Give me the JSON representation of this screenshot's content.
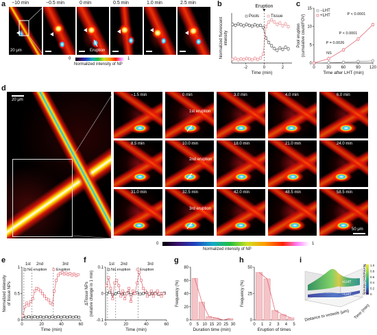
{
  "panel_labels": {
    "a": "a",
    "b": "b",
    "c": "c",
    "d": "d",
    "e": "e",
    "f": "f",
    "g": "g",
    "h": "h",
    "i": "i"
  },
  "panel_a": {
    "times": [
      "−10 min",
      "−0.5 min",
      "0 min",
      "0.5 min",
      "1.0 min",
      "2.5 min"
    ],
    "scale": "20 μm",
    "eruption_label": "Eruption",
    "colorbar_label": "Normalized intensity of NP",
    "colorbar_min": "0",
    "colorbar_max": "1"
  },
  "panel_d": {
    "scale": "20 μm",
    "scale2": "50 μm",
    "times": [
      "−1.5 min",
      "0 min",
      "3.0 min",
      "4.0 min",
      "6.0 min",
      "8.5 min",
      "10.0 min",
      "18.0 min",
      "21.0 min",
      "24.0 min",
      "31.0 min",
      "32.5 min",
      "42.0 min",
      "48.5 min",
      "58.5 min"
    ],
    "eruptions": [
      "1st eruption",
      "2nd eruption",
      "3rd eruption"
    ],
    "colorbar_label": "Normalized intensity of NP",
    "colorbar_min": "0",
    "colorbar_max": "1"
  },
  "chart_data": [
    {
      "id": "b",
      "type": "line",
      "title": "Eruption",
      "xlabel": "Time (min)",
      "ylabel": "Normalized fluorescent intensity",
      "xlim": [
        -3.5,
        3
      ],
      "ylim": [
        0,
        1.1
      ],
      "xticks": [
        -2,
        0,
        2
      ],
      "legend": [
        "Pools",
        "Tissue"
      ],
      "legend_position": "top",
      "series": [
        {
          "name": "Pools",
          "color": "#555555",
          "x": [
            -3.4,
            -3.1,
            -2.8,
            -2.5,
            -2.2,
            -1.9,
            -1.6,
            -1.3,
            -1.0,
            -0.7,
            -0.4,
            -0.1,
            0.2,
            0.5,
            0.8,
            1.1,
            1.4,
            1.7,
            2.0,
            2.3,
            2.6
          ],
          "y": [
            0.85,
            0.83,
            0.86,
            0.84,
            0.82,
            0.85,
            0.83,
            0.81,
            0.84,
            0.82,
            0.83,
            0.78,
            0.55,
            0.45,
            0.38,
            0.32,
            0.28,
            0.33,
            0.3,
            0.35,
            0.31
          ]
        },
        {
          "name": "Tissue",
          "color": "#e8868c",
          "x": [
            -3.4,
            -3.1,
            -2.8,
            -2.5,
            -2.2,
            -1.9,
            -1.6,
            -1.3,
            -1.0,
            -0.7,
            -0.4,
            -0.1,
            0.2,
            0.5,
            0.8,
            1.1,
            1.4,
            1.7,
            2.0,
            2.3,
            2.6
          ],
          "y": [
            0.08,
            0.1,
            0.07,
            0.09,
            0.08,
            0.1,
            0.09,
            0.07,
            0.1,
            0.08,
            0.11,
            0.2,
            0.8,
            0.9,
            0.95,
            0.9,
            0.85,
            0.88,
            0.82,
            0.86,
            0.8
          ]
        }
      ]
    },
    {
      "id": "c",
      "type": "line",
      "xlabel": "Time after LHT (min)",
      "ylabel": "Pool eruption (cumulative count/FOV)",
      "xlim": [
        0,
        120
      ],
      "ylim": [
        0,
        15
      ],
      "xticks": [
        0,
        30,
        60,
        90,
        120
      ],
      "yticks": [
        0,
        5,
        10,
        15
      ],
      "legend": [
        "−LHT",
        "+LHT"
      ],
      "legend_position": "top-left",
      "annotations": [
        "P < 0.0001",
        "P < 0.0001",
        "P = 0.0026",
        "NS"
      ],
      "series": [
        {
          "name": "−LHT",
          "color": "#888888",
          "x": [
            0,
            30,
            60,
            90,
            120
          ],
          "y": [
            0,
            0.1,
            0.2,
            0.4,
            0.6
          ]
        },
        {
          "name": "+LHT",
          "color": "#e05a66",
          "x": [
            0,
            30,
            60,
            90,
            120
          ],
          "y": [
            0,
            1.2,
            3.6,
            6.6,
            10.5
          ]
        }
      ]
    },
    {
      "id": "e",
      "type": "line",
      "xlabel": "Time (min)",
      "ylabel": "Normalized intensity of tissue NPs",
      "xlim": [
        0,
        60
      ],
      "ylim": [
        0,
        1.0
      ],
      "xticks": [
        0,
        20,
        40,
        60
      ],
      "yticks": [
        0,
        0.5,
        1.0
      ],
      "legend": [
        "No eruption",
        "Eruption"
      ],
      "phase_labels": [
        "1st",
        "2nd",
        "3rd"
      ],
      "series": [
        {
          "name": "No eruption",
          "color": "#333333",
          "x": [
            1,
            4,
            7,
            10,
            13,
            16,
            19,
            22,
            25,
            28,
            31,
            34,
            37,
            40,
            43,
            46,
            49,
            52,
            55,
            58
          ],
          "y": [
            0.06,
            0.05,
            0.06,
            0.05,
            0.06,
            0.05,
            0.06,
            0.05,
            0.06,
            0.05,
            0.06,
            0.05,
            0.06,
            0.05,
            0.06,
            0.05,
            0.06,
            0.05,
            0.06,
            0.05
          ]
        },
        {
          "name": "Eruption",
          "color": "#e05a66",
          "x": [
            1,
            3,
            5,
            7,
            9,
            11,
            13,
            15,
            17,
            19,
            21,
            23,
            25,
            27,
            29,
            31,
            33,
            35,
            37,
            39,
            41,
            43,
            45,
            47,
            49,
            51,
            53,
            55,
            57
          ],
          "y": [
            0.08,
            0.25,
            0.32,
            0.28,
            0.35,
            0.4,
            0.55,
            0.6,
            0.58,
            0.55,
            0.5,
            0.45,
            0.4,
            0.38,
            0.32,
            0.3,
            0.55,
            0.75,
            0.85,
            0.88,
            0.9,
            0.87,
            0.89,
            0.86,
            0.88,
            0.85,
            0.87,
            0.84,
            0.86
          ]
        }
      ]
    },
    {
      "id": "f",
      "type": "line",
      "xlabel": "Time (min)",
      "ylabel": "ΔTissue NPs (relative change in 1 min)",
      "xlim": [
        0,
        60
      ],
      "ylim": [
        -0.1,
        0.1
      ],
      "xticks": [
        0,
        20,
        40,
        60
      ],
      "yticks": [
        -0.1,
        0,
        0.1
      ],
      "legend": [
        "No eruption",
        "Eruption"
      ],
      "phase_labels": [
        "1st",
        "2nd",
        "3rd"
      ],
      "series": [
        {
          "name": "No eruption",
          "color": "#333333",
          "x": [
            1,
            4,
            7,
            10,
            13,
            16,
            19,
            22,
            25,
            28,
            31,
            34,
            37,
            40,
            43,
            46,
            49,
            52,
            55,
            58
          ],
          "y": [
            0.0,
            0.005,
            -0.005,
            0.0,
            0.004,
            -0.003,
            0.0,
            0.003,
            -0.004,
            0.0,
            0.003,
            -0.002,
            0.0,
            0.004,
            -0.003,
            0.0,
            0.002,
            -0.003,
            0.0,
            0.002
          ]
        },
        {
          "name": "Eruption",
          "color": "#e05a66",
          "x": [
            1,
            3,
            5,
            7,
            9,
            11,
            13,
            15,
            17,
            19,
            21,
            23,
            25,
            27,
            29,
            31,
            33,
            35,
            37,
            39,
            41,
            43,
            45,
            47,
            49,
            51,
            53,
            55,
            57
          ],
          "y": [
            0.03,
            0.06,
            0.02,
            -0.02,
            0.04,
            0.05,
            0.03,
            -0.01,
            0.01,
            -0.02,
            0.0,
            0.02,
            -0.03,
            0.01,
            0.0,
            0.04,
            0.08,
            0.05,
            0.02,
            0.01,
            -0.01,
            0.0,
            0.01,
            -0.01,
            0.0,
            0.01,
            0.0,
            -0.01,
            0.0
          ]
        }
      ]
    },
    {
      "id": "g",
      "type": "bar",
      "xlabel": "Duration time (min)",
      "ylabel": "Frequency (%)",
      "categories": [
        "5",
        "10",
        "15",
        "20",
        "25",
        "30"
      ],
      "xticks": [
        "0",
        "5",
        "10",
        "15",
        "20",
        "25",
        "30"
      ],
      "values": [
        63,
        27,
        5,
        3,
        0,
        2
      ],
      "ylim": [
        0,
        80
      ],
      "yticks": [
        0,
        20,
        40,
        60,
        80
      ]
    },
    {
      "id": "h",
      "type": "bar",
      "xlabel": "Eruption of times",
      "ylabel": "Frequency (%)",
      "categories": [
        "1",
        "2",
        "3",
        "4",
        "5"
      ],
      "xticks": [
        "0",
        "1",
        "2",
        "3",
        "4",
        "5"
      ],
      "values": [
        45,
        39,
        9,
        5,
        2
      ],
      "ylim": [
        0,
        50
      ],
      "yticks": [
        0,
        25,
        50
      ]
    },
    {
      "id": "i",
      "type": "heatmap",
      "xlabel": "Distance to vessels (μm)",
      "ylabel": "Time (min)",
      "zlabel": "Normalized intensity",
      "colorbar_ticks": [
        "1.0",
        "0.8",
        "0.6",
        "0.4",
        "0.2",
        "0"
      ],
      "series": [
        {
          "name": "+LHT",
          "color": "#3bb373"
        },
        {
          "name": "−LHT",
          "color": "#4b7bc4"
        }
      ]
    }
  ]
}
